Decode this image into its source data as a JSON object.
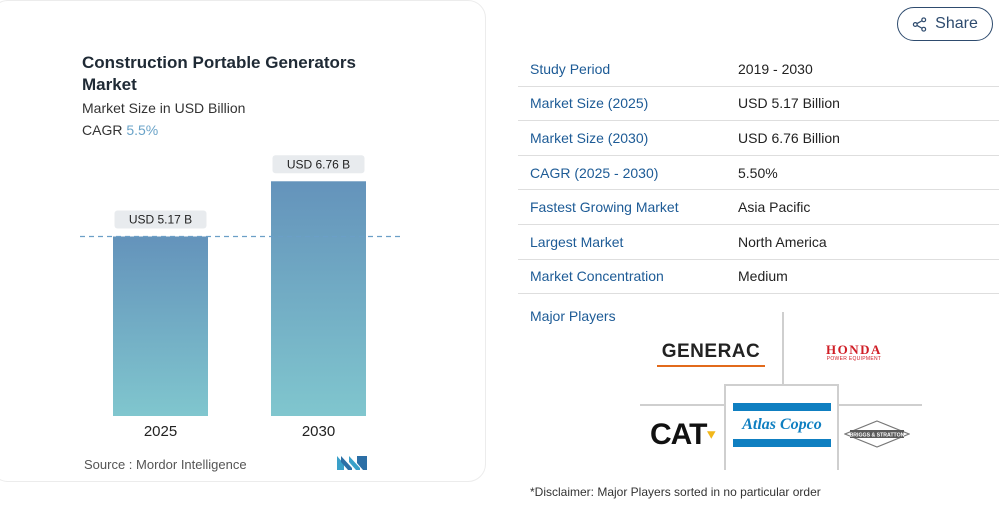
{
  "chart_card": {
    "title": "Construction Portable Generators Market",
    "subtitle": "Market Size in USD Billion",
    "cagr_label": "CAGR",
    "cagr_value": "5.5%",
    "source": "Source :  Mordor Intelligence",
    "source_logo": "mordor-intelligence-logo"
  },
  "chart_data": {
    "type": "bar",
    "title": "Construction Portable Generators Market",
    "subtitle": "Market Size in USD Billion",
    "categories": [
      "2025",
      "2030"
    ],
    "values": [
      5.17,
      6.76
    ],
    "data_labels": [
      "USD 5.17 B",
      "USD 6.76 B"
    ],
    "ylim": [
      0,
      7.2
    ],
    "reference_line": 5.17,
    "grid": false,
    "colors": {
      "bar_top": "#6493bb",
      "bar_bottom": "#80c6ce",
      "label_bg": "#e8ebee",
      "ref_line": "#6b9fc7"
    }
  },
  "share": {
    "label": "Share",
    "icon": "share-icon"
  },
  "info_table": [
    {
      "label": "Study Period",
      "value": "2019 - 2030"
    },
    {
      "label": "Market Size (2025)",
      "value": "USD 5.17 Billion"
    },
    {
      "label": "Market Size (2030)",
      "value": "USD 6.76 Billion"
    },
    {
      "label": "CAGR (2025 - 2030)",
      "value": "5.50%"
    },
    {
      "label": "Fastest Growing Market",
      "value": "Asia Pacific"
    },
    {
      "label": "Largest Market",
      "value": "North America"
    },
    {
      "label": "Market Concentration",
      "value": "Medium"
    }
  ],
  "major_players": {
    "title": "Major Players",
    "logos": {
      "generac": "GENERAC",
      "honda": "HONDA",
      "honda_sub": "POWER EQUIPMENT",
      "cat": "CAT",
      "atlas": "Atlas Copco",
      "briggs": "BRIGGS & STRATTON"
    }
  },
  "disclaimer": "*Disclaimer: Major Players sorted in no particular order"
}
